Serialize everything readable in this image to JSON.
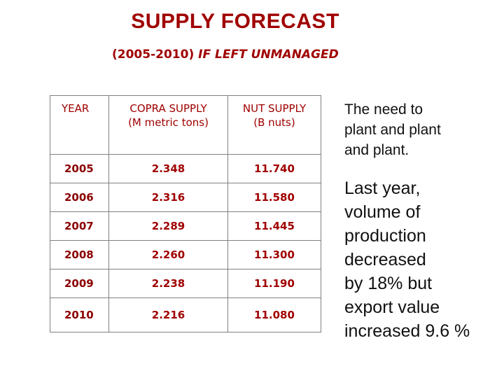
{
  "header": {
    "title": "SUPPLY FORECAST",
    "subtitle_range": "(2005-2010) ",
    "subtitle_emphasis": "IF LEFT UNMANAGED"
  },
  "table": {
    "columns": [
      "YEAR",
      "COPRA SUPPLY\n(M metric tons)",
      "NUT SUPPLY\n(B nuts)"
    ],
    "rows": [
      {
        "year": "2005",
        "copra": "2.348",
        "nut": "11.740"
      },
      {
        "year": "2006",
        "copra": "2.316",
        "nut": "11.580"
      },
      {
        "year": "2007",
        "copra": "2.289",
        "nut": "11.445"
      },
      {
        "year": "2008",
        "copra": "2.260",
        "nut": "11.300"
      },
      {
        "year": "2009",
        "copra": "2.238",
        "nut": "11.190"
      },
      {
        "year": "2010",
        "copra": "2.216",
        "nut": "11.080"
      }
    ]
  },
  "notes": {
    "need": "The need to\nplant  and plant\nand plant.",
    "stats": "Last year,\nvolume of\nproduction\ndecreased\nby 18% but\nexport value\nincreased 9.6 %"
  }
}
